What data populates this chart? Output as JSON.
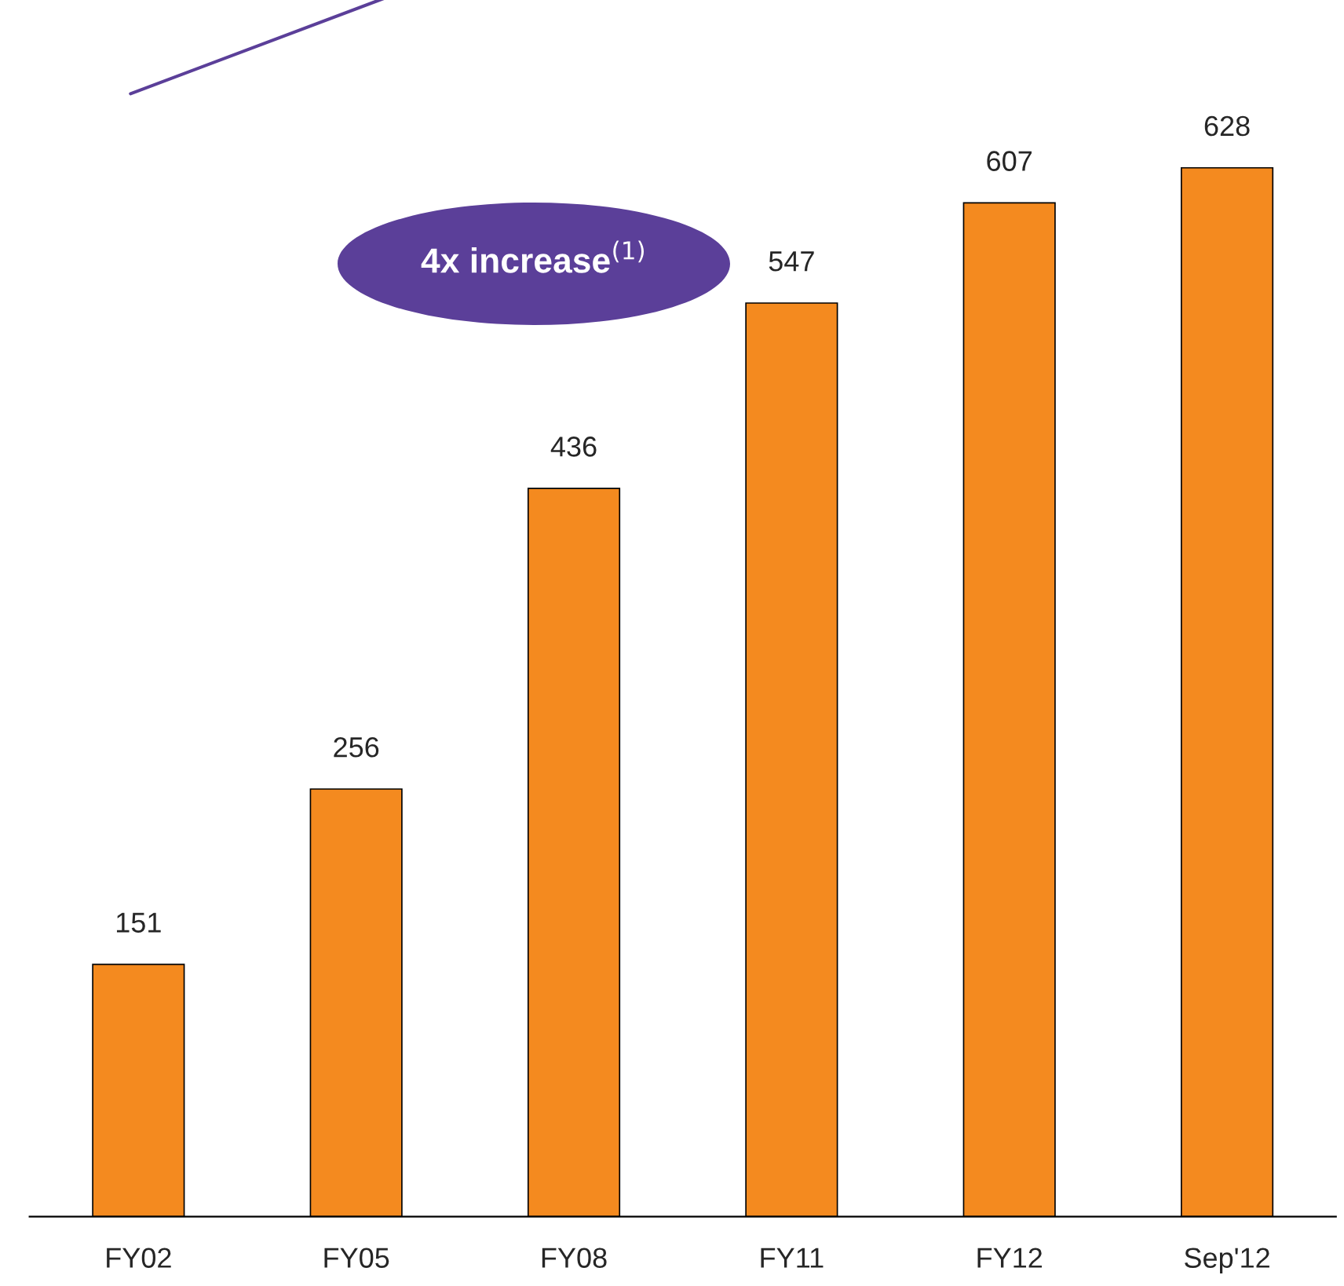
{
  "chart_data": {
    "type": "bar",
    "categories": [
      "FY02",
      "FY05",
      "FY08",
      "FY11",
      "FY12",
      "Sep'12"
    ],
    "values": [
      151,
      256,
      436,
      547,
      607,
      628
    ],
    "color": "#f48a1f",
    "data_labels": true,
    "annotations": [
      "4x increase$^{(1)}$"
    ]
  }
}
